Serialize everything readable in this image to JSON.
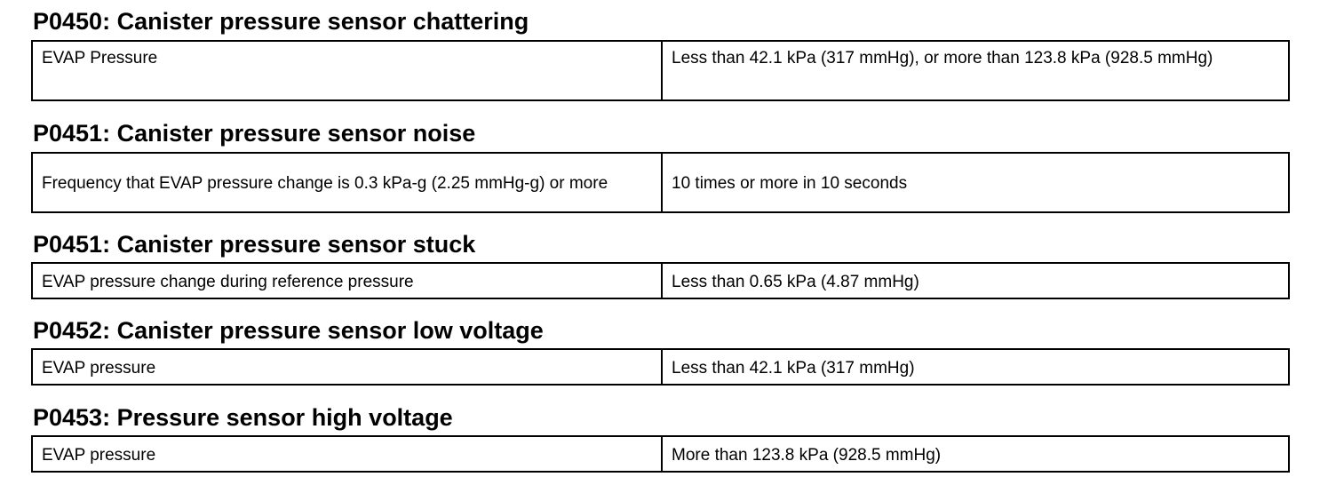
{
  "sections": [
    {
      "title": "P0450: Canister pressure sensor chattering",
      "rows": [
        [
          "EVAP Pressure",
          "Less than 42.1 kPa (317 mmHg), or more than 123.8 kPa (928.5 mmHg)"
        ]
      ]
    },
    {
      "title": "P0451: Canister pressure sensor noise",
      "rows": [
        [
          "Frequency that EVAP pressure change is 0.3 kPa-g (2.25 mmHg-g) or more",
          "10 times or more in 10 seconds"
        ]
      ]
    },
    {
      "title": "P0451: Canister pressure sensor stuck",
      "rows": [
        [
          "EVAP pressure change during reference pressure",
          "Less than 0.65 kPa (4.87 mmHg)"
        ]
      ]
    },
    {
      "title": "P0452: Canister pressure sensor low voltage",
      "rows": [
        [
          "EVAP pressure",
          "Less than 42.1 kPa (317 mmHg)"
        ]
      ]
    },
    {
      "title": "P0453: Pressure sensor high voltage",
      "rows": [
        [
          "EVAP pressure",
          "More than 123.8 kPa (928.5 mmHg)"
        ]
      ]
    }
  ]
}
